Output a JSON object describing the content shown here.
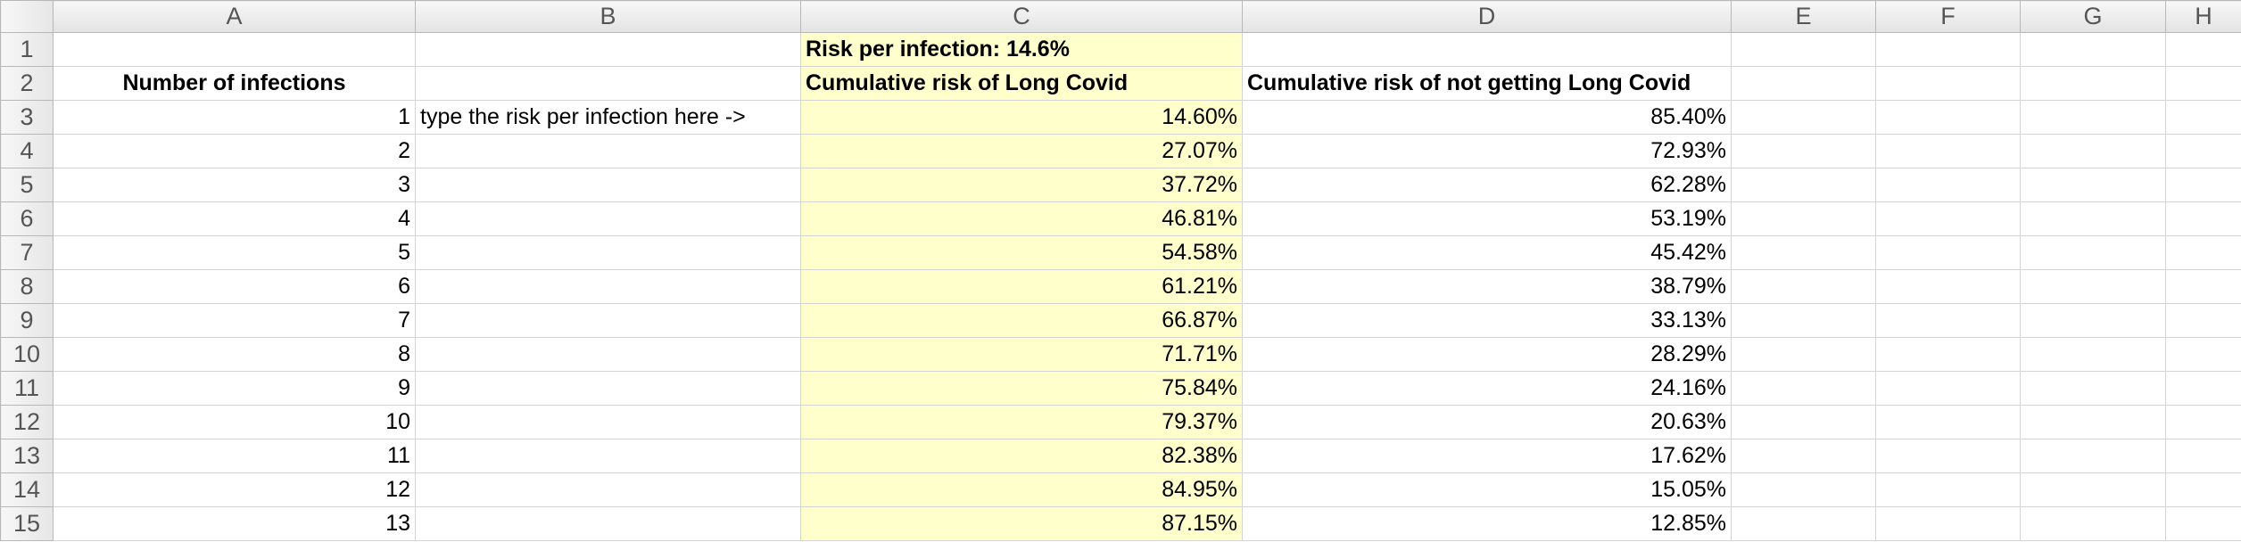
{
  "columns": [
    "A",
    "B",
    "C",
    "D",
    "E",
    "F",
    "G",
    "H"
  ],
  "rows": [
    {
      "number": 1,
      "C": "Risk per infection: 14.6%"
    },
    {
      "number": 2,
      "A": "Number of infections",
      "C": "Cumulative risk of Long Covid",
      "D": "Cumulative risk of not getting Long Covid"
    },
    {
      "number": 3,
      "A": 1,
      "B": "type the risk per infection here ->",
      "C": "14.60%",
      "D": "85.40%"
    },
    {
      "number": 4,
      "A": 2,
      "C": "27.07%",
      "D": "72.93%"
    },
    {
      "number": 5,
      "A": 3,
      "C": "37.72%",
      "D": "62.28%"
    },
    {
      "number": 6,
      "A": 4,
      "C": "46.81%",
      "D": "53.19%"
    },
    {
      "number": 7,
      "A": 5,
      "C": "54.58%",
      "D": "45.42%"
    },
    {
      "number": 8,
      "A": 6,
      "C": "61.21%",
      "D": "38.79%"
    },
    {
      "number": 9,
      "A": 7,
      "C": "66.87%",
      "D": "33.13%"
    },
    {
      "number": 10,
      "A": 8,
      "C": "71.71%",
      "D": "28.29%"
    },
    {
      "number": 11,
      "A": 9,
      "C": "75.84%",
      "D": "24.16%"
    },
    {
      "number": 12,
      "A": 10,
      "C": "79.37%",
      "D": "20.63%"
    },
    {
      "number": 13,
      "A": 11,
      "C": "82.38%",
      "D": "17.62%"
    },
    {
      "number": 14,
      "A": 12,
      "C": "84.95%",
      "D": "15.05%"
    },
    {
      "number": 15,
      "A": 13,
      "C": "87.15%",
      "D": "12.85%"
    }
  ]
}
